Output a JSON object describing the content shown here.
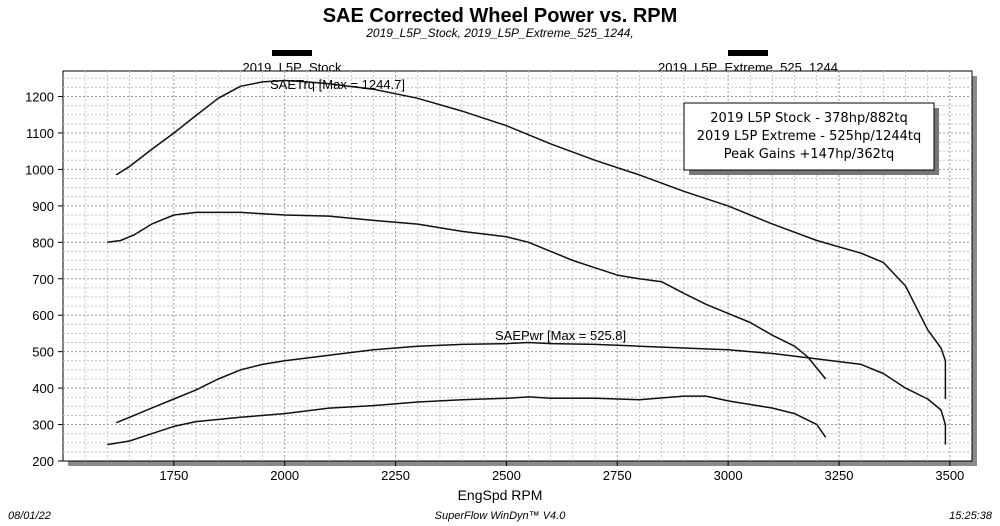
{
  "chart_data": {
    "type": "line",
    "title": "SAE Corrected Wheel Power vs. RPM",
    "subtitle": "2019_L5P_Stock, 2019_L5P_Extreme_525_1244,",
    "xlabel": "EngSpd RPM",
    "ylabel": "",
    "xlim": [
      1500,
      3550
    ],
    "ylim": [
      200,
      1270
    ],
    "x_ticks": [
      "1750",
      "2000",
      "2250",
      "2500",
      "2750",
      "3000",
      "3250",
      "3500"
    ],
    "y_ticks": [
      "200",
      "300",
      "400",
      "500",
      "600",
      "700",
      "800",
      "900",
      "1000",
      "1100",
      "1200"
    ],
    "grid": true,
    "legend": [
      {
        "label": "2019_L5P_Stock",
        "position": "top-left",
        "style": "thick-black-line"
      },
      {
        "label": "2019_L5P_Extreme_525_1244",
        "position": "top-right",
        "style": "thick-black-line"
      }
    ],
    "annotations": {
      "torque_max": "SAETrq [Max = 1244.7]",
      "power_max": "SAEPwr [Max = 525.8]"
    },
    "info_box": [
      "2019 L5P Stock - 378hp/882tq",
      "2019 L5P Extreme - 525hp/1244tq",
      "Peak Gains +147hp/362tq"
    ],
    "series": [
      {
        "name": "2019_L5P_Extreme_525_1244 SAETrq",
        "points": [
          [
            1620,
            985
          ],
          [
            1650,
            1008
          ],
          [
            1700,
            1055
          ],
          [
            1750,
            1100
          ],
          [
            1800,
            1148
          ],
          [
            1850,
            1195
          ],
          [
            1900,
            1228
          ],
          [
            1950,
            1240
          ],
          [
            2000,
            1244
          ],
          [
            2050,
            1240
          ],
          [
            2100,
            1235
          ],
          [
            2200,
            1220
          ],
          [
            2300,
            1195
          ],
          [
            2400,
            1160
          ],
          [
            2500,
            1120
          ],
          [
            2600,
            1070
          ],
          [
            2700,
            1025
          ],
          [
            2800,
            985
          ],
          [
            2900,
            940
          ],
          [
            3000,
            900
          ],
          [
            3100,
            850
          ],
          [
            3200,
            805
          ],
          [
            3300,
            770
          ],
          [
            3350,
            745
          ],
          [
            3400,
            680
          ],
          [
            3450,
            560
          ],
          [
            3480,
            510
          ],
          [
            3490,
            475
          ],
          [
            3490,
            370
          ]
        ]
      },
      {
        "name": "2019_L5P_Stock SAETrq",
        "points": [
          [
            1600,
            800
          ],
          [
            1630,
            805
          ],
          [
            1660,
            820
          ],
          [
            1700,
            850
          ],
          [
            1750,
            875
          ],
          [
            1800,
            882
          ],
          [
            1900,
            882
          ],
          [
            2000,
            875
          ],
          [
            2100,
            872
          ],
          [
            2200,
            860
          ],
          [
            2300,
            850
          ],
          [
            2400,
            830
          ],
          [
            2500,
            815
          ],
          [
            2550,
            800
          ],
          [
            2600,
            775
          ],
          [
            2650,
            750
          ],
          [
            2700,
            730
          ],
          [
            2750,
            710
          ],
          [
            2800,
            700
          ],
          [
            2850,
            692
          ],
          [
            2900,
            660
          ],
          [
            2950,
            630
          ],
          [
            3000,
            605
          ],
          [
            3050,
            580
          ],
          [
            3100,
            545
          ],
          [
            3150,
            515
          ],
          [
            3180,
            485
          ],
          [
            3200,
            455
          ],
          [
            3220,
            425
          ]
        ]
      },
      {
        "name": "2019_L5P_Extreme_525_1244 SAEPwr",
        "points": [
          [
            1620,
            305
          ],
          [
            1650,
            320
          ],
          [
            1700,
            345
          ],
          [
            1750,
            370
          ],
          [
            1800,
            395
          ],
          [
            1850,
            425
          ],
          [
            1900,
            450
          ],
          [
            1950,
            465
          ],
          [
            2000,
            475
          ],
          [
            2100,
            490
          ],
          [
            2200,
            505
          ],
          [
            2300,
            515
          ],
          [
            2400,
            520
          ],
          [
            2500,
            522
          ],
          [
            2550,
            525
          ],
          [
            2600,
            522
          ],
          [
            2700,
            520
          ],
          [
            2800,
            515
          ],
          [
            2900,
            510
          ],
          [
            3000,
            505
          ],
          [
            3100,
            495
          ],
          [
            3200,
            480
          ],
          [
            3300,
            465
          ],
          [
            3350,
            440
          ],
          [
            3400,
            400
          ],
          [
            3450,
            370
          ],
          [
            3480,
            340
          ],
          [
            3490,
            300
          ],
          [
            3490,
            245
          ]
        ]
      },
      {
        "name": "2019_L5P_Stock SAEPwr",
        "points": [
          [
            1600,
            245
          ],
          [
            1650,
            255
          ],
          [
            1700,
            275
          ],
          [
            1750,
            295
          ],
          [
            1800,
            308
          ],
          [
            1900,
            320
          ],
          [
            2000,
            330
          ],
          [
            2100,
            345
          ],
          [
            2200,
            352
          ],
          [
            2300,
            362
          ],
          [
            2400,
            368
          ],
          [
            2500,
            372
          ],
          [
            2550,
            376
          ],
          [
            2600,
            372
          ],
          [
            2700,
            372
          ],
          [
            2800,
            368
          ],
          [
            2900,
            378
          ],
          [
            2950,
            378
          ],
          [
            3000,
            365
          ],
          [
            3050,
            355
          ],
          [
            3100,
            345
          ],
          [
            3150,
            330
          ],
          [
            3200,
            300
          ],
          [
            3220,
            265
          ]
        ]
      }
    ]
  },
  "footer": {
    "date": "08/01/22",
    "software": "SuperFlow WinDyn™ V4.0",
    "time": "15:25:38"
  }
}
